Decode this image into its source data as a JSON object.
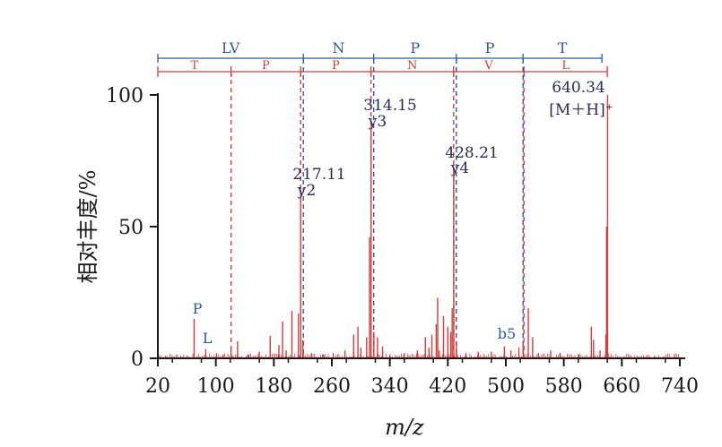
{
  "chart_data": {
    "type": "bar",
    "xlabel": "m/z",
    "ylabel": "相对丰度/%",
    "xlim": [
      20,
      745
    ],
    "ylim": [
      0,
      100
    ],
    "xticks": [
      20,
      100,
      180,
      260,
      340,
      420,
      500,
      580,
      660,
      740
    ],
    "yticks": [
      0,
      50,
      100
    ],
    "peaks": [
      [
        70,
        15
      ],
      [
        86,
        3.5
      ],
      [
        101,
        2
      ],
      [
        110,
        1.5
      ],
      [
        121,
        4
      ],
      [
        130,
        6.5
      ],
      [
        145,
        1.5
      ],
      [
        160,
        2.5
      ],
      [
        175,
        8.5
      ],
      [
        187,
        5
      ],
      [
        192,
        14
      ],
      [
        197,
        3
      ],
      [
        205,
        18
      ],
      [
        214,
        17
      ],
      [
        217.11,
        64
      ],
      [
        220,
        7
      ],
      [
        232,
        2
      ],
      [
        248,
        1.5
      ],
      [
        262,
        2
      ],
      [
        278,
        3
      ],
      [
        290,
        9
      ],
      [
        296,
        12
      ],
      [
        300,
        4
      ],
      [
        308,
        8
      ],
      [
        312,
        46
      ],
      [
        314.15,
        90
      ],
      [
        318,
        10
      ],
      [
        323,
        8
      ],
      [
        330,
        4.5
      ],
      [
        340,
        1.5
      ],
      [
        360,
        2
      ],
      [
        378,
        3
      ],
      [
        389,
        8
      ],
      [
        394,
        4
      ],
      [
        398,
        9
      ],
      [
        404,
        13
      ],
      [
        406,
        23
      ],
      [
        408,
        3
      ],
      [
        414,
        16
      ],
      [
        420,
        12
      ],
      [
        424,
        10
      ],
      [
        426,
        19
      ],
      [
        428.21,
        71
      ],
      [
        432,
        6
      ],
      [
        445,
        2
      ],
      [
        462,
        2.5
      ],
      [
        480,
        2.5
      ],
      [
        498,
        4.5
      ],
      [
        507,
        3
      ],
      [
        518,
        4
      ],
      [
        524,
        6
      ],
      [
        531,
        19
      ],
      [
        537,
        8
      ],
      [
        545,
        2
      ],
      [
        562,
        3
      ],
      [
        575,
        2
      ],
      [
        600,
        1.5
      ],
      [
        618,
        12
      ],
      [
        621,
        7
      ],
      [
        630,
        3
      ],
      [
        638,
        9
      ],
      [
        639,
        50
      ],
      [
        640.34,
        100
      ]
    ],
    "labels": [
      {
        "x": 217.11,
        "lines": [
          "217.11",
          "y2"
        ]
      },
      {
        "x": 314.15,
        "lines": [
          "314.15",
          "y3"
        ]
      },
      {
        "x": 428.21,
        "lines": [
          "428.21",
          "y4"
        ]
      },
      {
        "x": 640.34,
        "lines": [
          "640.34",
          "[M＋H]⁺"
        ]
      }
    ],
    "ions": [
      {
        "x": 70,
        "text": "P"
      },
      {
        "x": 86,
        "text": "L"
      },
      {
        "x": 498,
        "text": "b5"
      }
    ],
    "y_series": {
      "boundaries": [
        20,
        217,
        314,
        428,
        520,
        640
      ],
      "residues": [
        "LV",
        "N",
        "P",
        "P",
        "T"
      ]
    },
    "b_series": {
      "boundaries": [
        20,
        121,
        217,
        314,
        428,
        525,
        640
      ],
      "residues": [
        "T",
        "P",
        "P",
        "N",
        "V",
        "L"
      ]
    },
    "colors": {
      "peak": "#d93a3a",
      "y_series": "#2a5aa8",
      "b_series": "#d93a3a",
      "axis": "#1a1a1a"
    }
  }
}
